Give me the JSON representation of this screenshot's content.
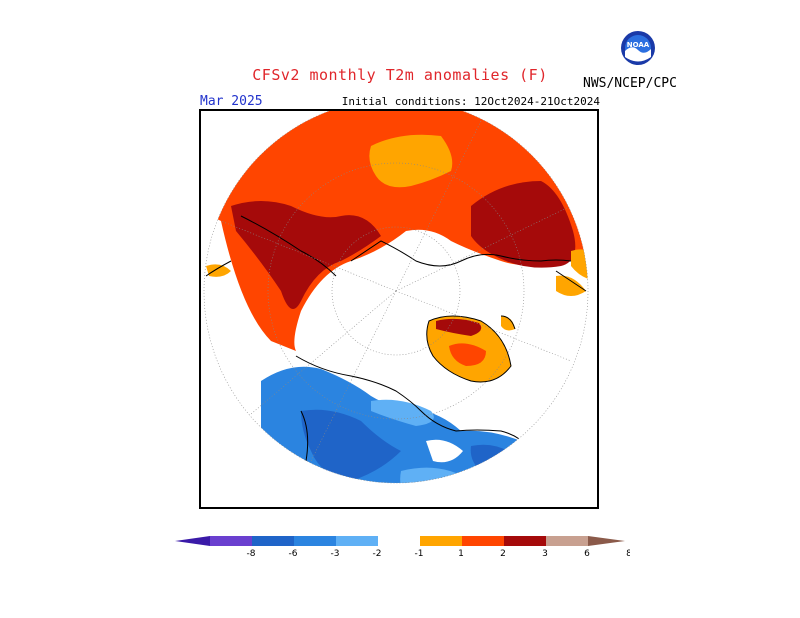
{
  "title": "CFSv2 monthly T2m anomalies (F)",
  "month_label": "Mar 2025",
  "initial_conditions": "Initial conditions: 12Oct2024-21Oct2024",
  "agency": "NWS/NCEP/CPC",
  "logo": {
    "text": "NOAA",
    "icon": "noaa-logo-icon"
  },
  "colors": {
    "lt_-6": "#6a3fcf",
    "-6_-3": "#1f64c8",
    "-3_-2": "#2b84e0",
    "-2_-1": "#5fb0f5",
    "-1_1": "#ffffff",
    "1_2": "#ffa500",
    "2_3": "#ff4500",
    "3_6": "#e8300a",
    "6_8": "#a50a0a",
    "gt_8": "#c8a090",
    "extreme": "#8b5a4a"
  },
  "colorbar": {
    "ticks": [
      "-8",
      "-6",
      "-3",
      "-2",
      "-1",
      "1",
      "2",
      "3",
      "6",
      "8"
    ]
  }
}
